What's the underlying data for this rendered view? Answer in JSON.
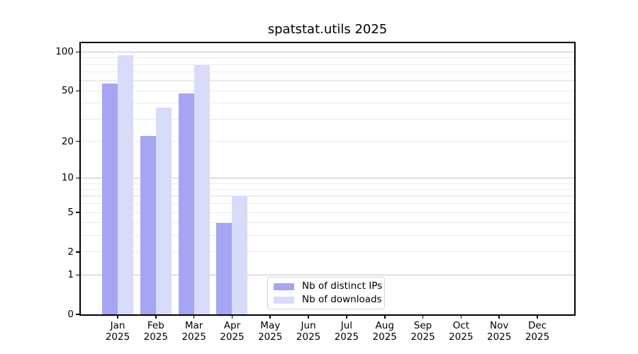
{
  "chart_data": {
    "type": "bar",
    "title": "spatstat.utils 2025",
    "categories": [
      "Jan",
      "Feb",
      "Mar",
      "Apr",
      "May",
      "Jun",
      "Jul",
      "Aug",
      "Sep",
      "Oct",
      "Nov",
      "Dec"
    ],
    "x_year": "2025",
    "series": [
      {
        "name": "Nb of distinct IPs",
        "color": "#a5a5f3",
        "values": [
          57,
          22,
          48,
          4,
          null,
          null,
          null,
          null,
          null,
          null,
          null,
          null
        ]
      },
      {
        "name": "Nb of downloads",
        "color": "#d8dbf9",
        "values": [
          94,
          37,
          79,
          7,
          null,
          null,
          null,
          null,
          null,
          null,
          null,
          null
        ]
      }
    ],
    "xlabel": "",
    "ylabel": "",
    "yscale": "log1p",
    "ylim": [
      0,
      117
    ],
    "yticks": [
      0,
      1,
      2,
      5,
      10,
      20,
      50,
      100
    ],
    "grid_major": [
      1,
      10,
      100
    ],
    "grid_minor": [
      2,
      3,
      4,
      5,
      6,
      7,
      8,
      9,
      20,
      30,
      40,
      50,
      60,
      70,
      80,
      90
    ],
    "grid": "horizontal",
    "legend_position": "lower-center-inside",
    "colors": {
      "spine": "#000000",
      "grid_major": "#c3c3c3",
      "grid_minor": "#eaeaea",
      "text": "#000000"
    }
  }
}
